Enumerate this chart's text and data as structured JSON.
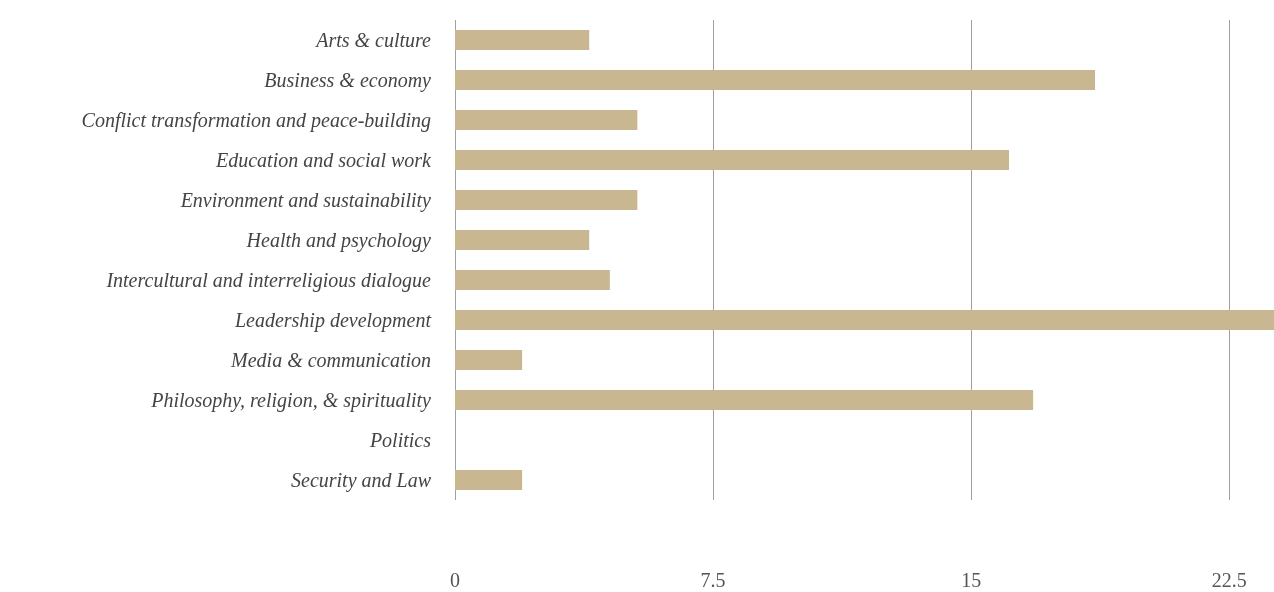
{
  "chart_data": {
    "type": "bar",
    "orientation": "horizontal",
    "categories": [
      "Arts & culture",
      "Business & economy",
      "Conflict transformation and peace-building",
      "Education and social work",
      "Environment and sustainability",
      "Health and psychology",
      "Intercultural and interreligious dialogue",
      "Leadership development",
      "Media & communication",
      "Philosophy, religion, & spirituality",
      "Politics",
      "Security and Law"
    ],
    "values": [
      3.9,
      18.6,
      5.3,
      16.1,
      5.3,
      3.9,
      4.5,
      23.8,
      1.95,
      16.8,
      0,
      1.95
    ],
    "color": "#c8b791",
    "xlim": [
      0,
      23.8
    ],
    "xticks": [
      0,
      7.5,
      15,
      22.5
    ],
    "grid": "x"
  }
}
